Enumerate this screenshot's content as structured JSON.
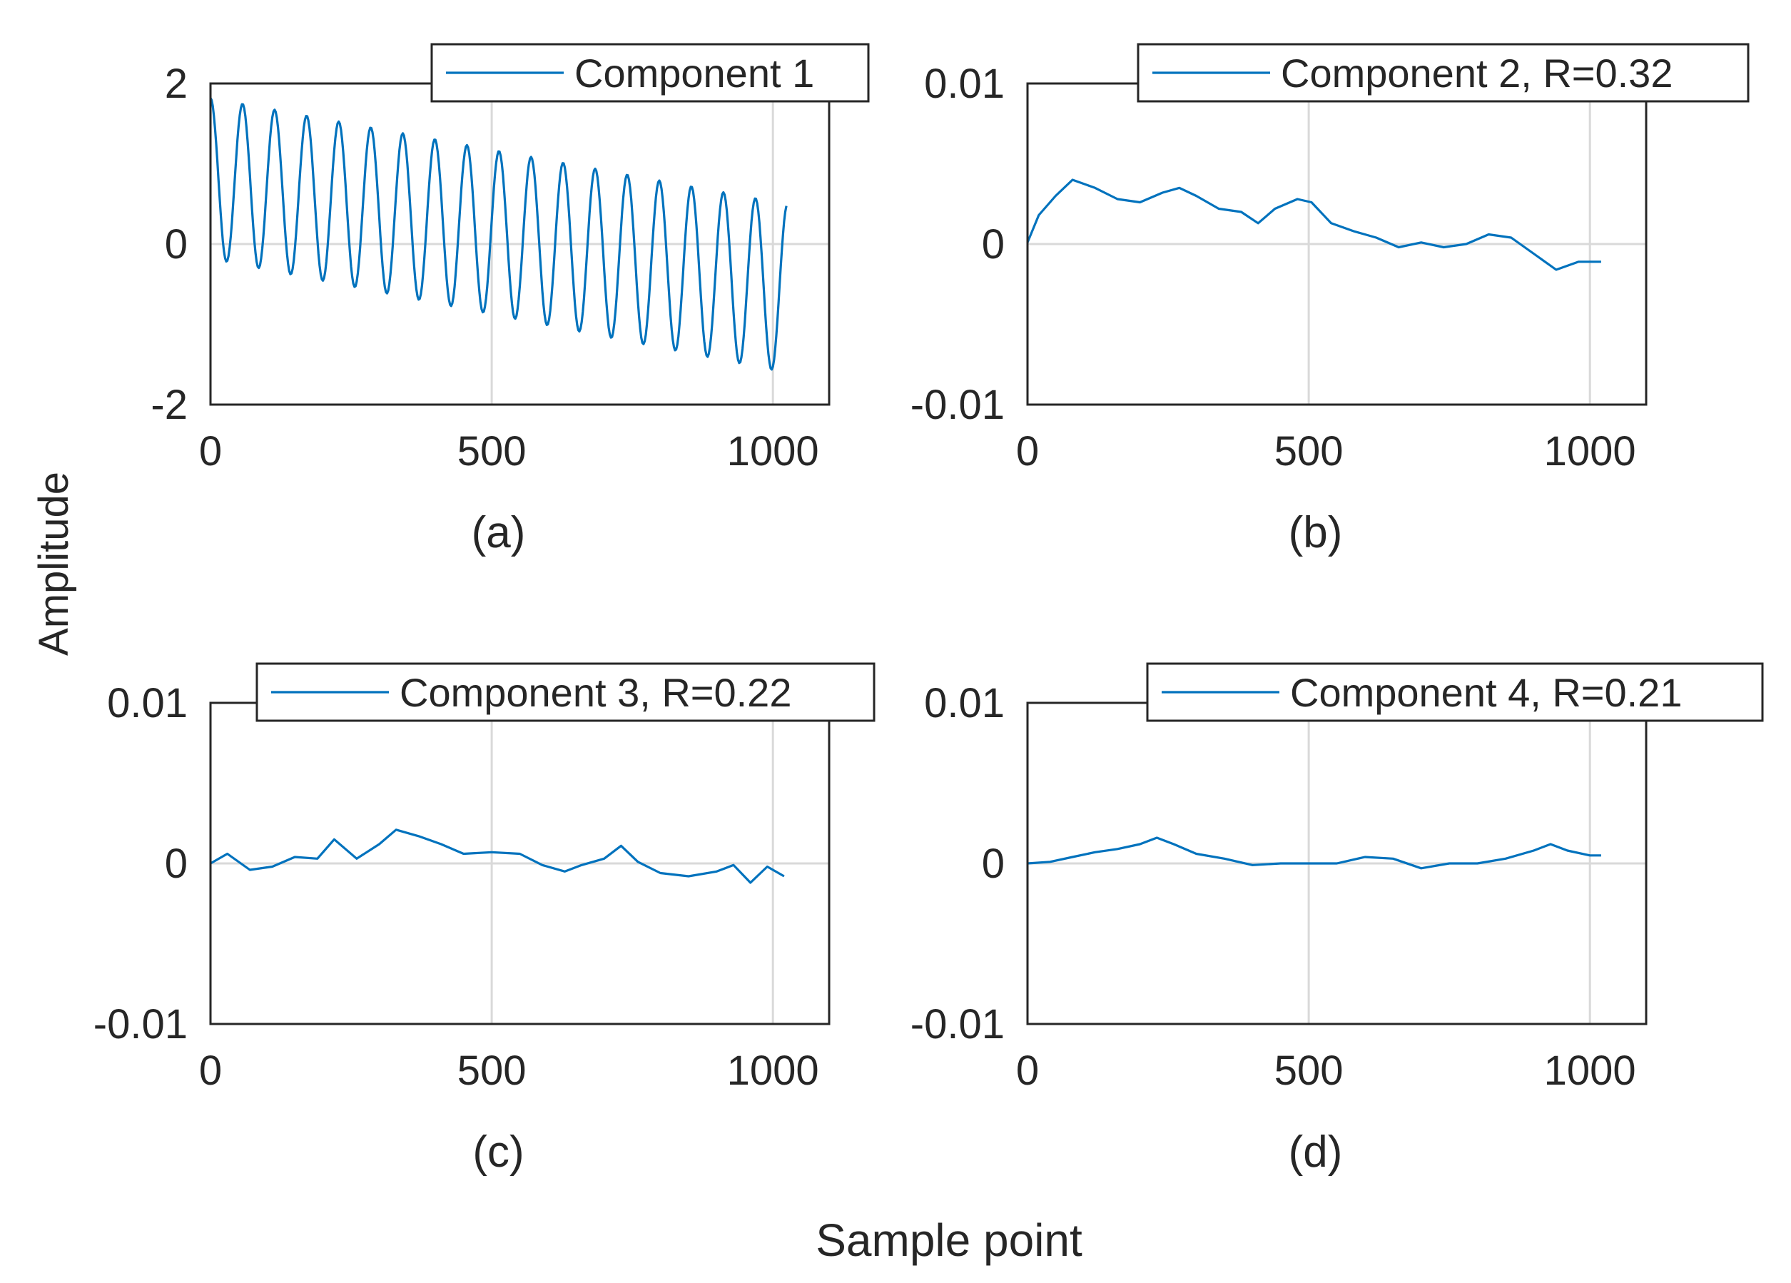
{
  "figure": {
    "ylabel": "Amplitude",
    "xlabel": "Sample point",
    "line_color": "#0072BD",
    "grid_color": "#d9d9d9",
    "axis_color": "#262626"
  },
  "chart_data": [
    {
      "type": "line",
      "panel_label": "(a)",
      "legend": "Component 1",
      "xlim": [
        0,
        1100
      ],
      "ylim": [
        -2,
        2
      ],
      "xticks": [
        0,
        500,
        1000
      ],
      "xtick_labels": [
        "0",
        "500",
        "1000"
      ],
      "yticks": [
        -2,
        0,
        2
      ],
      "ytick_labels": [
        "-2",
        "0",
        "2"
      ],
      "grid": true,
      "x_start": 0,
      "x_end": 1024,
      "signal": {
        "kind": "oscillation",
        "period_samples": 57,
        "offset_at_start": 0.82,
        "offset_at_end": -0.55,
        "amplitude_at_start": 1.0,
        "amplitude_at_end": 1.05
      },
      "values_note": "Peaks decline from ~1.8 to ~0.5; troughs decline from ~-0.1 to ~-1.5"
    },
    {
      "type": "line",
      "panel_label": "(b)",
      "legend": "Component 2, R=0.32",
      "xlim": [
        0,
        1100
      ],
      "ylim": [
        -0.01,
        0.01
      ],
      "xticks": [
        0,
        500,
        1000
      ],
      "xtick_labels": [
        "0",
        "500",
        "1000"
      ],
      "yticks": [
        -0.01,
        0,
        0.01
      ],
      "ytick_labels": [
        "-0.01",
        "0",
        "0.01"
      ],
      "grid": true,
      "points": [
        [
          0,
          0.0001
        ],
        [
          20,
          0.0018
        ],
        [
          50,
          0.003
        ],
        [
          80,
          0.004
        ],
        [
          120,
          0.0035
        ],
        [
          160,
          0.0028
        ],
        [
          200,
          0.0026
        ],
        [
          240,
          0.0032
        ],
        [
          270,
          0.0035
        ],
        [
          300,
          0.003
        ],
        [
          340,
          0.0022
        ],
        [
          380,
          0.002
        ],
        [
          410,
          0.0013
        ],
        [
          440,
          0.0022
        ],
        [
          480,
          0.0028
        ],
        [
          505,
          0.0026
        ],
        [
          540,
          0.0013
        ],
        [
          580,
          0.0008
        ],
        [
          620,
          0.0004
        ],
        [
          660,
          -0.0002
        ],
        [
          700,
          0.0001
        ],
        [
          740,
          -0.0002
        ],
        [
          780,
          0.0
        ],
        [
          820,
          0.0006
        ],
        [
          860,
          0.0004
        ],
        [
          900,
          -0.0006
        ],
        [
          940,
          -0.0016
        ],
        [
          980,
          -0.0011
        ],
        [
          1020,
          -0.0011
        ]
      ]
    },
    {
      "type": "line",
      "panel_label": "(c)",
      "legend": "Component 3, R=0.22",
      "xlim": [
        0,
        1100
      ],
      "ylim": [
        -0.01,
        0.01
      ],
      "xticks": [
        0,
        500,
        1000
      ],
      "xtick_labels": [
        "0",
        "500",
        "1000"
      ],
      "yticks": [
        -0.01,
        0,
        0.01
      ],
      "ytick_labels": [
        "-0.01",
        "0",
        "0.01"
      ],
      "grid": true,
      "points": [
        [
          0,
          0.0
        ],
        [
          30,
          0.0006
        ],
        [
          70,
          -0.0004
        ],
        [
          110,
          -0.0002
        ],
        [
          150,
          0.0004
        ],
        [
          190,
          0.0003
        ],
        [
          220,
          0.0015
        ],
        [
          260,
          0.0003
        ],
        [
          300,
          0.0012
        ],
        [
          330,
          0.0021
        ],
        [
          370,
          0.0017
        ],
        [
          410,
          0.0012
        ],
        [
          450,
          0.0006
        ],
        [
          500,
          0.0007
        ],
        [
          550,
          0.0006
        ],
        [
          590,
          -0.0001
        ],
        [
          630,
          -0.0005
        ],
        [
          660,
          -0.0001
        ],
        [
          700,
          0.0003
        ],
        [
          730,
          0.0011
        ],
        [
          760,
          0.0001
        ],
        [
          800,
          -0.0006
        ],
        [
          850,
          -0.0008
        ],
        [
          900,
          -0.0005
        ],
        [
          930,
          -0.0001
        ],
        [
          960,
          -0.0012
        ],
        [
          990,
          -0.0002
        ],
        [
          1020,
          -0.0008
        ]
      ]
    },
    {
      "type": "line",
      "panel_label": "(d)",
      "legend": "Component 4, R=0.21",
      "xlim": [
        0,
        1100
      ],
      "ylim": [
        -0.01,
        0.01
      ],
      "xticks": [
        0,
        500,
        1000
      ],
      "xtick_labels": [
        "0",
        "500",
        "1000"
      ],
      "yticks": [
        -0.01,
        0,
        0.01
      ],
      "ytick_labels": [
        "-0.01",
        "0",
        "0.01"
      ],
      "grid": true,
      "points": [
        [
          0,
          0.0
        ],
        [
          40,
          0.0001
        ],
        [
          80,
          0.0004
        ],
        [
          120,
          0.0007
        ],
        [
          160,
          0.0009
        ],
        [
          200,
          0.0012
        ],
        [
          230,
          0.0016
        ],
        [
          260,
          0.0012
        ],
        [
          300,
          0.0006
        ],
        [
          350,
          0.0003
        ],
        [
          400,
          -0.0001
        ],
        [
          450,
          0.0
        ],
        [
          500,
          0.0
        ],
        [
          550,
          0.0
        ],
        [
          600,
          0.0004
        ],
        [
          650,
          0.0003
        ],
        [
          700,
          -0.0003
        ],
        [
          750,
          0.0
        ],
        [
          800,
          0.0
        ],
        [
          850,
          0.0003
        ],
        [
          900,
          0.0008
        ],
        [
          930,
          0.0012
        ],
        [
          960,
          0.0008
        ],
        [
          1000,
          0.0005
        ],
        [
          1020,
          0.0005
        ]
      ]
    }
  ]
}
